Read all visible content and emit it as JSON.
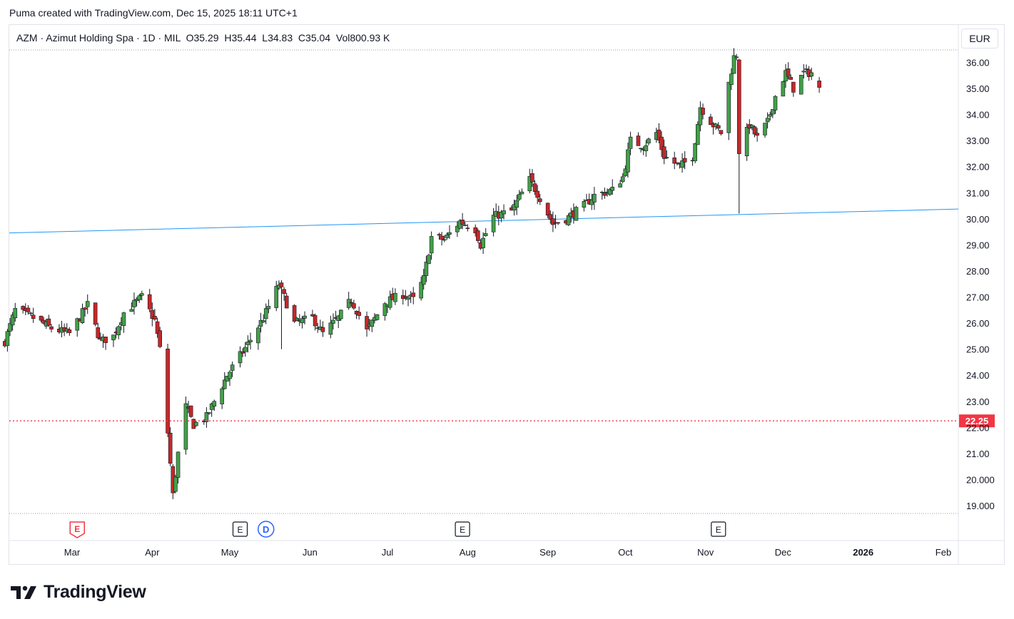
{
  "caption": "Puma created with TradingView.com, Dec 15, 2025 18:11 UTC+1",
  "legend": {
    "symbol": "AZM",
    "sep1": "·",
    "name": "Azimut Holding Spa",
    "sep2": "·",
    "interval": "1D",
    "sep3": "·",
    "exchange": "MIL",
    "open_label": "O",
    "open_value": "35.29",
    "high_label": "H",
    "high_value": "35.44",
    "low_label": "L",
    "low_value": "34.83",
    "close_label": "C",
    "close_value": "35.04",
    "vol_label": "Vol",
    "vol_value": "800.93 K"
  },
  "currency_button": "EUR",
  "logo_text": "TradingView",
  "colors": {
    "up": "#2e7d32",
    "up_fill": "#43a047",
    "down": "#b71c1c",
    "down_fill": "#c62828",
    "trendline": "#2196f3",
    "price_line": "#f23645",
    "price_label_bg": "#f23645"
  },
  "chart_data": {
    "type": "candlestick",
    "y_ticks": [
      "36.00",
      "35.00",
      "34.00",
      "33.00",
      "32.00",
      "31.00",
      "30.00",
      "29.00",
      "28.00",
      "27.00",
      "26.00",
      "25.00",
      "24.00",
      "23.00",
      "22.00",
      "21.00",
      "20.000",
      "19.000"
    ],
    "ylim": [
      18.7,
      36.45
    ],
    "x_ticks": [
      "Mar",
      "Apr",
      "May",
      "Jun",
      "Jul",
      "Aug",
      "Sep",
      "Oct",
      "Nov",
      "Dec",
      "2026",
      "Feb"
    ],
    "price_line_label": "22.25",
    "price_line_value": 22.25,
    "trendline": {
      "start": [
        "2025-02-01",
        29.45
      ],
      "end": [
        "2026-02-25",
        30.42
      ]
    },
    "event_markers": [
      {
        "date": "2025-03-03",
        "label": "E",
        "style": "earnings-red"
      },
      {
        "date": "2025-05-05",
        "label": "E",
        "style": "earnings"
      },
      {
        "date": "2025-05-15",
        "label": "D",
        "style": "dividend"
      },
      {
        "date": "2025-07-30",
        "label": "E",
        "style": "earnings"
      },
      {
        "date": "2025-11-06",
        "label": "E",
        "style": "earnings"
      }
    ],
    "ohlc_anchors": [
      {
        "date": "2025-02-03",
        "close": 25.3
      },
      {
        "date": "2025-02-07",
        "close": 26.5
      },
      {
        "date": "2025-02-14",
        "close": 26.2
      },
      {
        "date": "2025-02-21",
        "close": 25.8
      },
      {
        "date": "2025-02-28",
        "close": 25.6
      },
      {
        "date": "2025-03-07",
        "close": 26.7
      },
      {
        "date": "2025-03-12",
        "close": 25.3
      },
      {
        "date": "2025-03-17",
        "close": 25.5
      },
      {
        "date": "2025-03-21",
        "close": 26.4
      },
      {
        "date": "2025-03-28",
        "close": 27.0
      },
      {
        "date": "2025-04-02",
        "close": 26.1
      },
      {
        "date": "2025-04-04",
        "close": 25.0
      },
      {
        "date": "2025-04-07",
        "close": 21.8
      },
      {
        "date": "2025-04-09",
        "close": 19.4
      },
      {
        "date": "2025-04-11",
        "close": 21.0
      },
      {
        "date": "2025-04-14",
        "close": 22.8
      },
      {
        "date": "2025-04-17",
        "close": 22.1
      },
      {
        "date": "2025-04-22",
        "close": 22.4
      },
      {
        "date": "2025-04-30",
        "close": 24.0
      },
      {
        "date": "2025-05-08",
        "close": 25.2
      },
      {
        "date": "2025-05-14",
        "close": 26.2
      },
      {
        "date": "2025-05-20",
        "close": 27.5
      },
      {
        "date": "2025-05-26",
        "close": 26.0
      },
      {
        "date": "2025-06-02",
        "close": 26.2
      },
      {
        "date": "2025-06-06",
        "close": 25.6
      },
      {
        "date": "2025-06-12",
        "close": 26.2
      },
      {
        "date": "2025-06-17",
        "close": 26.9
      },
      {
        "date": "2025-06-23",
        "close": 25.7
      },
      {
        "date": "2025-06-30",
        "close": 26.8
      },
      {
        "date": "2025-07-07",
        "close": 27.1
      },
      {
        "date": "2025-07-11",
        "close": 26.9
      },
      {
        "date": "2025-07-15",
        "close": 27.7
      },
      {
        "date": "2025-07-18",
        "close": 29.3
      },
      {
        "date": "2025-07-23",
        "close": 29.2
      },
      {
        "date": "2025-07-29",
        "close": 29.9
      },
      {
        "date": "2025-08-04",
        "close": 29.6
      },
      {
        "date": "2025-08-06",
        "close": 29.0
      },
      {
        "date": "2025-08-11",
        "close": 30.1
      },
      {
        "date": "2025-08-18",
        "close": 30.3
      },
      {
        "date": "2025-08-25",
        "close": 31.5
      },
      {
        "date": "2025-08-29",
        "close": 30.8
      },
      {
        "date": "2025-09-03",
        "close": 29.8
      },
      {
        "date": "2025-09-08",
        "close": 30.0
      },
      {
        "date": "2025-09-15",
        "close": 30.5
      },
      {
        "date": "2025-09-19",
        "close": 30.9
      },
      {
        "date": "2025-09-26",
        "close": 31.1
      },
      {
        "date": "2025-09-30",
        "close": 31.6
      },
      {
        "date": "2025-10-03",
        "close": 33.0
      },
      {
        "date": "2025-10-08",
        "close": 32.8
      },
      {
        "date": "2025-10-13",
        "close": 33.3
      },
      {
        "date": "2025-10-16",
        "close": 32.4
      },
      {
        "date": "2025-10-22",
        "close": 32.0
      },
      {
        "date": "2025-10-27",
        "close": 32.4
      },
      {
        "date": "2025-10-30",
        "close": 34.3
      },
      {
        "date": "2025-11-04",
        "close": 33.6
      },
      {
        "date": "2025-11-07",
        "close": 33.3
      },
      {
        "date": "2025-11-10",
        "close": 35.2
      },
      {
        "date": "2025-11-12",
        "close": 36.2
      },
      {
        "date": "2025-11-13",
        "close": 36.3
      },
      {
        "date": "2025-11-14",
        "close": 32.6
      },
      {
        "date": "2025-11-18",
        "close": 33.6
      },
      {
        "date": "2025-11-21",
        "close": 33.1
      },
      {
        "date": "2025-11-25",
        "close": 33.7
      },
      {
        "date": "2025-11-28",
        "close": 34.7
      },
      {
        "date": "2025-12-02",
        "close": 35.6
      },
      {
        "date": "2025-12-05",
        "close": 35.0
      },
      {
        "date": "2025-12-09",
        "close": 35.6
      },
      {
        "date": "2025-12-12",
        "close": 35.6
      },
      {
        "date": "2025-12-15",
        "close": 35.04
      }
    ],
    "last_bar": {
      "date": "2025-12-15",
      "open": 35.29,
      "high": 35.44,
      "low": 34.83,
      "close": 35.04
    }
  }
}
